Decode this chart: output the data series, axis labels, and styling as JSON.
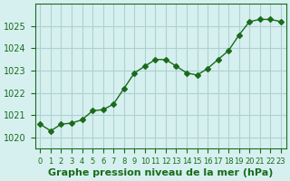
{
  "x": [
    0,
    1,
    2,
    3,
    4,
    5,
    6,
    7,
    8,
    9,
    10,
    11,
    12,
    13,
    14,
    15,
    16,
    17,
    18,
    19,
    20,
    21,
    22,
    23
  ],
  "y": [
    1020.6,
    1020.3,
    1020.6,
    1020.65,
    1020.8,
    1021.2,
    1021.25,
    1021.5,
    1022.2,
    1022.9,
    1023.2,
    1023.5,
    1023.5,
    1023.2,
    1022.9,
    1022.8,
    1023.1,
    1023.5,
    1023.9,
    1024.6,
    1025.2,
    1025.3,
    1025.3,
    1025.2
  ],
  "line_color": "#1a6b1a",
  "marker": "D",
  "marker_size": 3,
  "bg_color": "#d6f0f0",
  "grid_color": "#b0d0d0",
  "ylim_min": 1019.5,
  "ylim_max": 1026.0,
  "yticks": [
    1020,
    1021,
    1022,
    1023,
    1024,
    1025
  ],
  "xlabel": "Graphe pression niveau de la mer (hPa)",
  "title_color": "#1a6b1a",
  "xlabel_fontsize": 8,
  "tick_fontsize": 7
}
